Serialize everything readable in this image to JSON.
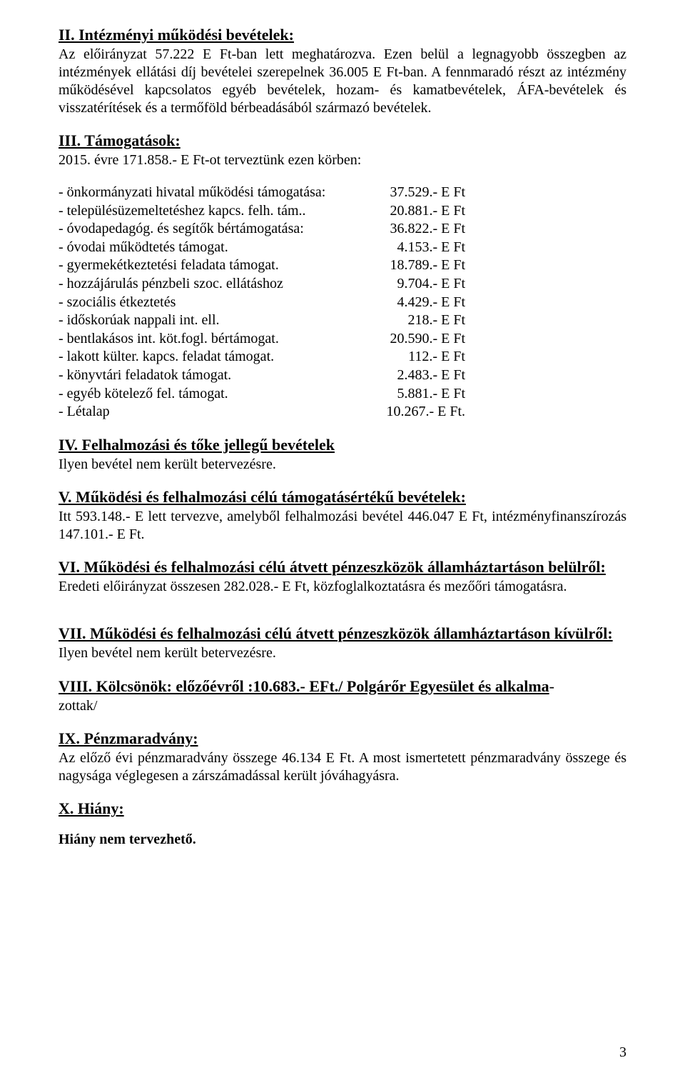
{
  "section2": {
    "heading": "II. Intézményi működési bevételek:",
    "para": "Az előirányzat 57.222 E Ft-ban lett meghatározva. Ezen belül a legnagyobb összegben az intézmények ellátási díj bevételei szerepelnek 36.005 E Ft-ban. A fennmaradó részt az intézmény működésével kapcsolatos egyéb bevételek, hozam- és kamatbevételek, ÁFA-bevételek és visszatérítések és a termőföld bérbeadásából származó bevételek."
  },
  "section3": {
    "heading": "III. Támogatások:",
    "intro": "2015. évre 171.858.- E Ft-ot terveztünk ezen körben:",
    "rows": [
      {
        "label": "- önkormányzati hivatal működési támogatása:",
        "value": "37.529.- E Ft"
      },
      {
        "label": "- településüzemeltetéshez kapcs. felh. tám..",
        "value": "20.881.- E Ft"
      },
      {
        "label": "- óvodapedagóg. és segítők bértámogatása:",
        "value": "36.822.- E Ft"
      },
      {
        "label": "- óvodai működtetés támogat.",
        "value": "4.153.- E Ft"
      },
      {
        "label": "- gyermekétkeztetési feladata támogat.",
        "value": "18.789.- E Ft"
      },
      {
        "label": "- hozzájárulás pénzbeli szoc. ellátáshoz",
        "value": "9.704.- E Ft"
      },
      {
        "label": "- szociális étkeztetés",
        "value": "4.429.- E Ft"
      },
      {
        "label": "- időskorúak nappali int. ell.",
        "value": "218.- E Ft"
      },
      {
        "label": "- bentlakásos int. köt.fogl. bértámogat.",
        "value": "20.590.- E Ft"
      },
      {
        "label": "- lakott külter. kapcs. feladat támogat.",
        "value": "112.- E Ft"
      },
      {
        "label": "- könyvtári feladatok támogat.",
        "value": "2.483.- E Ft"
      },
      {
        "label": "- egyéb kötelező fel. támogat.",
        "value": "5.881.- E Ft"
      },
      {
        "label": "- Létalap",
        "value": "10.267.- E Ft."
      }
    ]
  },
  "section4": {
    "heading": "IV. Felhalmozási és tőke jellegű bevételek",
    "para": "Ilyen bevétel nem került betervezésre."
  },
  "section5": {
    "heading": "V. Működési és felhalmozási célú támogatásértékű bevételek:",
    "para": "Itt 593.148.- E lett tervezve, amelyből felhalmozási bevétel 446.047 E Ft, intézményfinanszírozás 147.101.- E Ft."
  },
  "section6": {
    "heading": "VI. Működési és felhalmozási célú átvett pénzeszközök államháztartáson belülről:",
    "para": "Eredeti előirányzat összesen 282.028.- E Ft,  közfoglalkoztatásra és mezőőri támogatásra."
  },
  "section7": {
    "heading": "VII. Működési és felhalmozási célú átvett pénzeszközök államháztartáson kívülről:",
    "para": "Ilyen bevétel nem került betervezésre."
  },
  "section8": {
    "heading": "VIII. Kölcsönök: előzőévről :10.683.- EFt./ Polgárőr Egyesület és alkalma",
    "after": "-",
    "para": "zottak/"
  },
  "section9": {
    "heading": "IX. Pénzmaradvány:",
    "para": "Az előző évi pénzmaradvány összege 46.134 E Ft.  A most ismertetett pénzmaradvány összege és nagysága véglegesen a zárszámadással került jóváhagyásra."
  },
  "section10": {
    "heading": "X. Hiány:",
    "para": "Hiány nem tervezhető."
  },
  "pageNumber": "3"
}
